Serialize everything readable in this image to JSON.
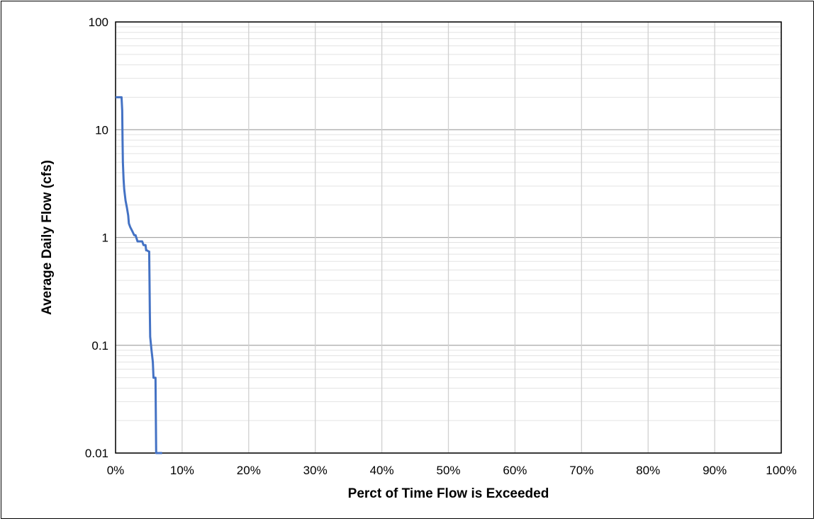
{
  "chart_data": {
    "type": "line",
    "title": "",
    "xlabel": "Perct of Time Flow is Exceeded",
    "ylabel": "Average Daily Flow (cfs)",
    "x_scale": "linear",
    "y_scale": "log",
    "xlim": [
      0,
      100
    ],
    "ylim": [
      0.01,
      100
    ],
    "x_ticks": [
      "0%",
      "10%",
      "20%",
      "30%",
      "40%",
      "50%",
      "60%",
      "70%",
      "80%",
      "90%",
      "100%"
    ],
    "y_ticks": [
      "0.01",
      "0.1",
      "1",
      "10",
      "100"
    ],
    "grid": true,
    "legend": "none",
    "series": [
      {
        "color": "#4472C4",
        "x": [
          0.0,
          0.4,
          0.9,
          1.0,
          1.05,
          1.1,
          1.2,
          1.3,
          1.5,
          1.7,
          1.9,
          2.0,
          2.2,
          2.5,
          2.8,
          3.0,
          3.3,
          3.5,
          4.0,
          4.2,
          4.5,
          4.6,
          4.7,
          5.0,
          5.05,
          5.1,
          5.15,
          5.2,
          5.4,
          5.6,
          5.7,
          5.9,
          6.0,
          6.1,
          6.5,
          7.0
        ],
        "y": [
          20,
          20,
          20,
          15,
          8,
          5,
          3.5,
          2.8,
          2.2,
          1.9,
          1.6,
          1.35,
          1.25,
          1.15,
          1.05,
          1.05,
          0.92,
          0.92,
          0.92,
          0.85,
          0.85,
          0.76,
          0.76,
          0.74,
          0.74,
          0.4,
          0.2,
          0.12,
          0.09,
          0.07,
          0.05,
          0.05,
          0.05,
          0.01,
          0.01,
          0.01
        ]
      }
    ]
  }
}
